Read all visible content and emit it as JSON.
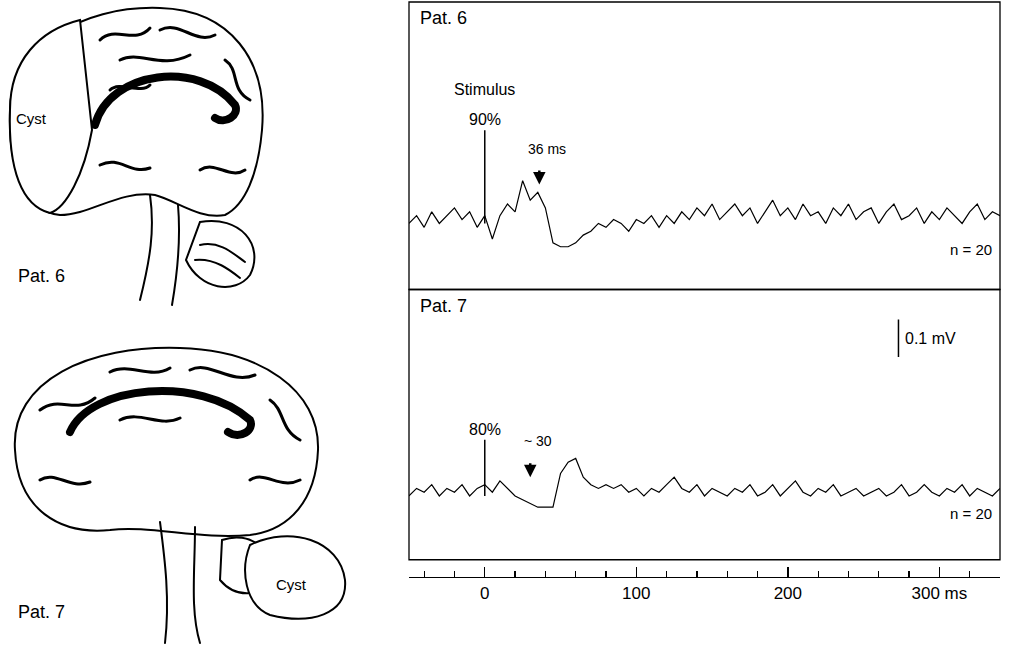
{
  "chart_data": {
    "type": "line",
    "tick_labels": "x",
    "grid": false,
    "x": [
      -50,
      -45,
      -40,
      -35,
      -30,
      -25,
      -20,
      -15,
      -10,
      -5,
      0,
      5,
      10,
      15,
      20,
      25,
      30,
      35,
      40,
      45,
      50,
      55,
      60,
      65,
      70,
      75,
      80,
      85,
      90,
      95,
      100,
      105,
      110,
      115,
      120,
      125,
      130,
      135,
      140,
      145,
      150,
      155,
      160,
      165,
      170,
      175,
      180,
      185,
      190,
      195,
      200,
      205,
      210,
      215,
      220,
      225,
      230,
      235,
      240,
      245,
      250,
      255,
      260,
      265,
      270,
      275,
      280,
      285,
      290,
      295,
      300,
      305,
      310,
      315,
      320,
      325,
      330,
      335,
      340
    ],
    "xlim": [
      -50,
      340
    ],
    "xticks": [
      0,
      100,
      200,
      {
        "value": 300,
        "label": "300 ms"
      }
    ],
    "minor_xticks": [
      -40,
      -20,
      0,
      20,
      40,
      60,
      80,
      100,
      120,
      140,
      160,
      180,
      200,
      220,
      240,
      260,
      280,
      300,
      320,
      340
    ],
    "panels": [
      {
        "title": "Pat. 6",
        "ylim": [
          -0.17,
          0.57
        ],
        "color": "#000000",
        "line_style": "solid",
        "values": [
          0.0,
          0.02,
          -0.01,
          0.03,
          0.0,
          0.02,
          0.04,
          0.01,
          0.03,
          -0.01,
          0.02,
          -0.04,
          0.02,
          0.05,
          0.03,
          0.11,
          0.06,
          0.08,
          0.04,
          -0.05,
          -0.06,
          -0.06,
          -0.05,
          -0.03,
          -0.02,
          0.0,
          -0.01,
          0.01,
          0.0,
          -0.02,
          0.01,
          0.0,
          0.02,
          -0.01,
          0.02,
          0.0,
          0.03,
          0.01,
          0.04,
          0.02,
          0.05,
          0.01,
          0.03,
          0.05,
          0.02,
          0.04,
          0.0,
          0.03,
          0.06,
          0.02,
          0.04,
          0.01,
          0.05,
          0.02,
          0.03,
          0.0,
          0.04,
          0.02,
          0.05,
          0.01,
          0.03,
          0.04,
          0.0,
          0.03,
          0.05,
          0.01,
          0.02,
          0.04,
          0.0,
          0.03,
          0.01,
          0.04,
          0.02,
          0.0,
          0.03,
          0.05,
          0.01,
          0.03,
          0.02
        ],
        "stimulus_title": "Stimulus",
        "stimulus": {
          "x": 0,
          "y": [
            0.0,
            0.24
          ],
          "label": "90%"
        },
        "latency": {
          "x": 36,
          "y": 0.1,
          "label": "36 ms"
        },
        "n_label": "n = 20"
      },
      {
        "title": "Pat. 7",
        "ylim": [
          -0.17,
          0.55
        ],
        "color": "#000000",
        "line_style": "solid",
        "values": [
          0.0,
          0.02,
          0.01,
          0.03,
          0.0,
          0.02,
          0.01,
          0.03,
          0.0,
          0.02,
          0.03,
          0.01,
          0.04,
          0.02,
          0.0,
          -0.01,
          -0.02,
          -0.03,
          -0.03,
          -0.03,
          0.06,
          0.09,
          0.1,
          0.05,
          0.03,
          0.02,
          0.03,
          0.02,
          0.03,
          0.01,
          0.02,
          0.0,
          0.02,
          0.01,
          0.03,
          0.05,
          0.02,
          0.01,
          0.03,
          0.0,
          0.02,
          0.01,
          0.0,
          0.02,
          0.01,
          0.03,
          0.0,
          0.01,
          0.03,
          0.0,
          0.02,
          0.04,
          0.01,
          0.0,
          0.02,
          0.01,
          0.03,
          0.0,
          0.01,
          0.02,
          0.0,
          0.01,
          0.02,
          0.0,
          0.01,
          0.03,
          0.0,
          0.01,
          0.03,
          0.01,
          0.0,
          0.02,
          0.01,
          0.03,
          0.0,
          0.02,
          0.01,
          0.0,
          0.02
        ],
        "stimulus": {
          "x": 0,
          "y": [
            0.0,
            0.15
          ],
          "label": "80%"
        },
        "latency": {
          "x": 30,
          "y": 0.05,
          "label": "~ 30"
        },
        "n_label": "n = 20",
        "scale_bar": {
          "x": 273,
          "y0": 0.37,
          "value": 0.1,
          "label": "0.1 mV"
        }
      }
    ]
  },
  "diagrams": [
    {
      "label": "Pat. 6",
      "lesion": "Cyst"
    },
    {
      "label": "Pat. 7",
      "lesion": "Cyst"
    }
  ]
}
